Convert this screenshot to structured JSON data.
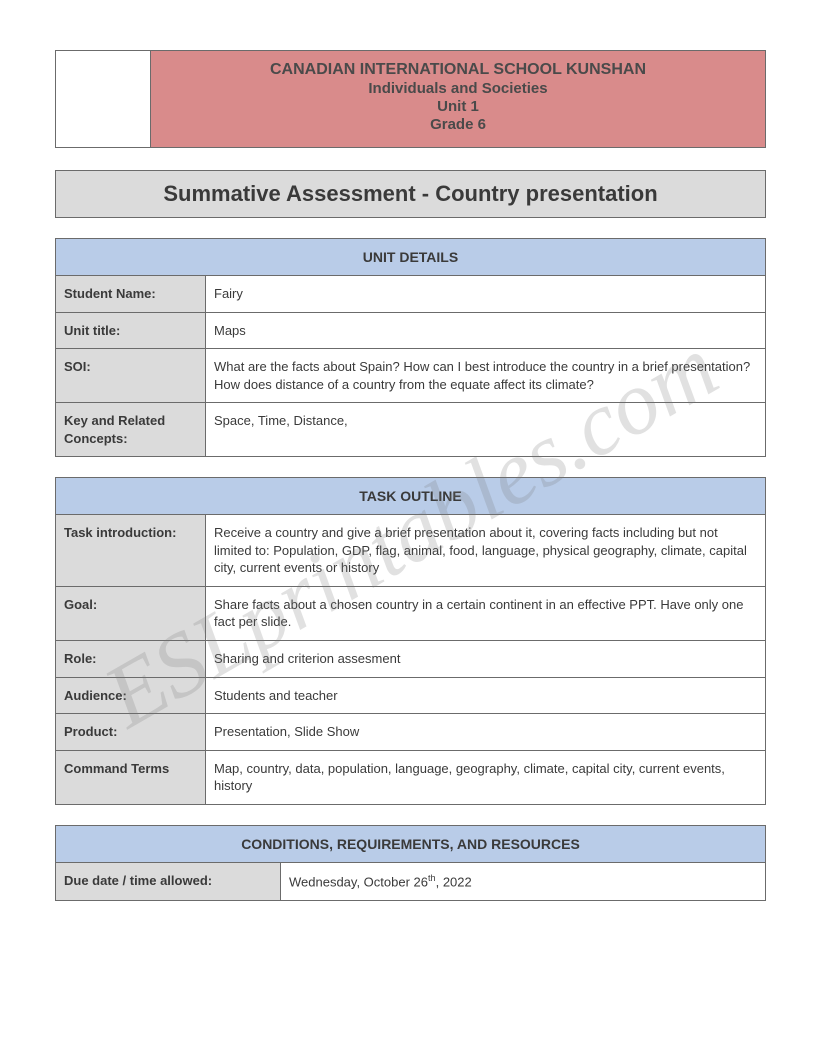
{
  "watermark": "ESLprintables.com",
  "header": {
    "line1": "CANADIAN INTERNATIONAL SCHOOL KUNSHAN",
    "line2": "Individuals and Societies",
    "line3": "Unit 1",
    "line4": "Grade 6",
    "bg_color": "#d98b8b",
    "text_color": "#4a4a4a"
  },
  "main_title": "Summative Assessment - Country presentation",
  "colors": {
    "section_head_bg": "#b9cce8",
    "label_bg": "#dbdbdb",
    "border": "#6b6b6b",
    "page_bg": "#ffffff",
    "text": "#3a3a3a"
  },
  "unit_details": {
    "heading": "UNIT DETAILS",
    "rows": [
      {
        "label": "Student Name:",
        "value": "Fairy"
      },
      {
        "label": "Unit title:",
        "value": "Maps"
      },
      {
        "label": "SOI:",
        "value": "What are the facts about Spain? How can I best introduce the country in a brief presentation? How does distance of a country from the equate affect its climate?"
      },
      {
        "label": "Key and Related Concepts:",
        "value": "Space, Time, Distance,"
      }
    ]
  },
  "task_outline": {
    "heading": "TASK OUTLINE",
    "rows": [
      {
        "label": "Task introduction:",
        "value": "Receive a country and give a brief presentation about it, covering facts including but not limited to: Population, GDP, flag, animal, food, language, physical geography, climate, capital city, current events or history"
      },
      {
        "label": "Goal:",
        "value": "Share facts about a chosen country in a certain continent in an effective PPT. Have only one fact per slide."
      },
      {
        "label": "Role:",
        "value": "Sharing and criterion assesment"
      },
      {
        "label": "Audience:",
        "value": "Students and teacher"
      },
      {
        "label": "Product:",
        "value": "Presentation, Slide Show"
      },
      {
        "label": "Command Terms",
        "value": "Map, country, data, population, language, geography, climate, capital city, current events, history"
      }
    ]
  },
  "conditions": {
    "heading": "CONDITIONS, REQUIREMENTS, AND RESOURCES",
    "rows": [
      {
        "label": "Due date / time allowed:",
        "value": "Wednesday, October 26th, 2022",
        "value_html": "Wednesday, October 26<sup>th</sup>, 2022"
      }
    ]
  }
}
